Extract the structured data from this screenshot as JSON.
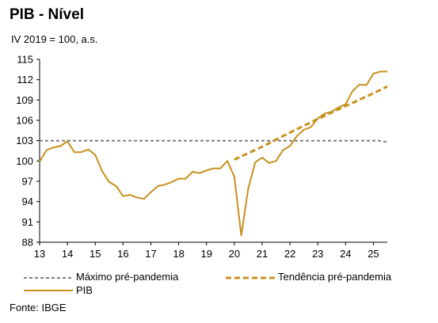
{
  "chart_data": {
    "type": "line",
    "title": "PIB - Nível",
    "subtitle": "IV 2019 = 100, a.s.",
    "ylim": [
      88,
      115
    ],
    "y_ticks": [
      88,
      91,
      94,
      97,
      100,
      103,
      106,
      109,
      112,
      115
    ],
    "xlim": [
      13.0,
      25.5
    ],
    "x_ticks": [
      "13",
      "14",
      "15",
      "16",
      "17",
      "18",
      "19",
      "20",
      "21",
      "22",
      "23",
      "24",
      "25"
    ],
    "colors": {
      "gray": "#7f7f7f",
      "gold": "#c8901e",
      "axis": "#000000"
    },
    "series": [
      {
        "name": "Máximo pré-pandemia",
        "style": "dashed",
        "color": "#7f7f7f",
        "x": [
          13.0,
          25.2,
          25.5
        ],
        "y": [
          103.0,
          103.0,
          102.8
        ]
      },
      {
        "name": "Tendência pré-pandemia",
        "style": "dashed-thick",
        "color": "#c8901e",
        "x": [
          20.0,
          21.0,
          22.0,
          23.0,
          24.0,
          25.0,
          25.5
        ],
        "y": [
          100.2,
          102.1,
          104.2,
          106.2,
          108.1,
          110.0,
          111.0
        ]
      },
      {
        "name": "PIB",
        "style": "solid",
        "color": "#c8901e",
        "x": [
          13.0,
          13.25,
          13.5,
          13.75,
          14.0,
          14.25,
          14.5,
          14.75,
          15.0,
          15.25,
          15.5,
          15.75,
          16.0,
          16.25,
          16.5,
          16.75,
          17.0,
          17.25,
          17.5,
          17.75,
          18.0,
          18.25,
          18.5,
          18.75,
          19.0,
          19.25,
          19.5,
          19.75,
          20.0,
          20.25,
          20.5,
          20.75,
          21.0,
          21.25,
          21.5,
          21.75,
          22.0,
          22.25,
          22.5,
          22.75,
          23.0,
          23.25,
          23.5,
          23.75,
          24.0,
          24.25,
          24.5,
          24.75,
          25.0,
          25.25,
          25.5
        ],
        "y": [
          99.9,
          101.6,
          102.0,
          102.2,
          102.9,
          101.3,
          101.3,
          101.7,
          100.9,
          98.5,
          96.9,
          96.3,
          94.8,
          95.0,
          94.6,
          94.4,
          95.4,
          96.3,
          96.5,
          96.9,
          97.4,
          97.4,
          98.4,
          98.2,
          98.6,
          98.9,
          98.9,
          100.0,
          97.7,
          89.0,
          95.9,
          99.8,
          100.5,
          99.7,
          100.0,
          101.6,
          102.2,
          103.7,
          104.6,
          105.0,
          106.3,
          107.0,
          107.3,
          107.9,
          108.4,
          110.3,
          111.3,
          111.2,
          112.9,
          113.2,
          113.2
        ]
      }
    ],
    "legend": {
      "placement": "bottom"
    }
  },
  "source": "Fonte: IBGE"
}
